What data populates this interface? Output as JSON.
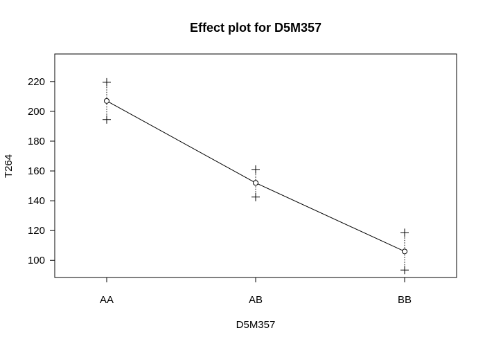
{
  "chart_data": {
    "type": "line",
    "title": "Effect plot for D5M357",
    "xlabel": "D5M357",
    "ylabel": "T264",
    "categories": [
      "AA",
      "AB",
      "BB"
    ],
    "series": [
      {
        "values": [
          207,
          152,
          106
        ],
        "lower": [
          194.5,
          142.5,
          93.5
        ],
        "upper": [
          219.5,
          161,
          118.5
        ]
      }
    ],
    "yticks": [
      100,
      120,
      140,
      160,
      180,
      200,
      220
    ],
    "ylim": [
      88.5,
      238.5
    ],
    "grid": false,
    "legend": "none"
  }
}
